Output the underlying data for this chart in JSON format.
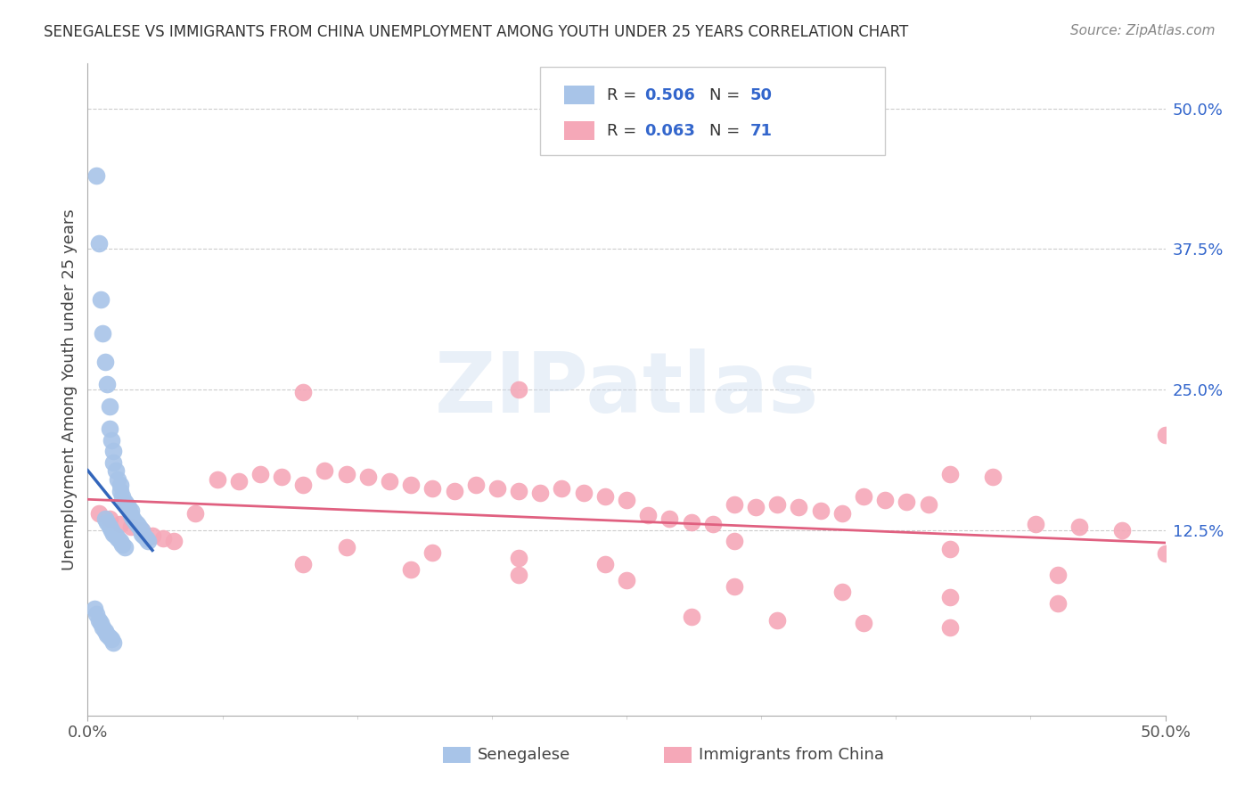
{
  "title": "SENEGALESE VS IMMIGRANTS FROM CHINA UNEMPLOYMENT AMONG YOUTH UNDER 25 YEARS CORRELATION CHART",
  "source": "Source: ZipAtlas.com",
  "ylabel": "Unemployment Among Youth under 25 years",
  "bg_color": "#ffffff",
  "watermark_text": "ZIPatlas",
  "senegalese_color": "#a8c4e8",
  "senegalese_line_color": "#3366bb",
  "china_color": "#f5a8b8",
  "china_line_color": "#e06080",
  "R_senegalese": 0.506,
  "N_senegalese": 50,
  "R_china": 0.063,
  "N_china": 71,
  "xlim": [
    0.0,
    0.5
  ],
  "ylim": [
    -0.04,
    0.54
  ],
  "senegalese_x": [
    0.004,
    0.005,
    0.006,
    0.007,
    0.008,
    0.009,
    0.01,
    0.01,
    0.011,
    0.012,
    0.012,
    0.013,
    0.014,
    0.015,
    0.015,
    0.016,
    0.017,
    0.018,
    0.019,
    0.02,
    0.02,
    0.021,
    0.022,
    0.023,
    0.024,
    0.025,
    0.025,
    0.026,
    0.027,
    0.028,
    0.008,
    0.009,
    0.01,
    0.011,
    0.012,
    0.013,
    0.014,
    0.015,
    0.016,
    0.017,
    0.003,
    0.004,
    0.005,
    0.006,
    0.007,
    0.008,
    0.009,
    0.01,
    0.011,
    0.012
  ],
  "senegalese_y": [
    0.44,
    0.38,
    0.33,
    0.3,
    0.275,
    0.255,
    0.235,
    0.215,
    0.205,
    0.195,
    0.185,
    0.178,
    0.17,
    0.165,
    0.16,
    0.155,
    0.15,
    0.148,
    0.145,
    0.142,
    0.138,
    0.135,
    0.132,
    0.13,
    0.128,
    0.125,
    0.122,
    0.12,
    0.118,
    0.115,
    0.135,
    0.132,
    0.128,
    0.125,
    0.122,
    0.12,
    0.118,
    0.115,
    0.112,
    0.11,
    0.055,
    0.05,
    0.045,
    0.042,
    0.038,
    0.035,
    0.032,
    0.03,
    0.028,
    0.025
  ],
  "china_x": [
    0.005,
    0.01,
    0.015,
    0.02,
    0.025,
    0.03,
    0.035,
    0.04,
    0.06,
    0.07,
    0.08,
    0.09,
    0.1,
    0.11,
    0.12,
    0.13,
    0.14,
    0.15,
    0.16,
    0.17,
    0.18,
    0.19,
    0.2,
    0.21,
    0.22,
    0.23,
    0.24,
    0.25,
    0.26,
    0.27,
    0.28,
    0.29,
    0.3,
    0.31,
    0.32,
    0.33,
    0.34,
    0.35,
    0.36,
    0.37,
    0.38,
    0.39,
    0.4,
    0.42,
    0.44,
    0.46,
    0.48,
    0.5,
    0.1,
    0.15,
    0.2,
    0.25,
    0.3,
    0.35,
    0.4,
    0.45,
    0.12,
    0.16,
    0.2,
    0.24,
    0.28,
    0.32,
    0.36,
    0.4,
    0.05,
    0.1,
    0.2,
    0.3,
    0.4,
    0.5,
    0.45
  ],
  "china_y": [
    0.14,
    0.135,
    0.13,
    0.128,
    0.125,
    0.12,
    0.118,
    0.115,
    0.17,
    0.168,
    0.175,
    0.172,
    0.165,
    0.178,
    0.175,
    0.172,
    0.168,
    0.165,
    0.162,
    0.16,
    0.165,
    0.162,
    0.16,
    0.158,
    0.162,
    0.158,
    0.155,
    0.152,
    0.138,
    0.135,
    0.132,
    0.13,
    0.148,
    0.145,
    0.148,
    0.145,
    0.142,
    0.14,
    0.155,
    0.152,
    0.15,
    0.148,
    0.175,
    0.172,
    0.13,
    0.128,
    0.125,
    0.21,
    0.095,
    0.09,
    0.085,
    0.08,
    0.075,
    0.07,
    0.065,
    0.06,
    0.11,
    0.105,
    0.1,
    0.095,
    0.048,
    0.045,
    0.042,
    0.038,
    0.14,
    0.248,
    0.25,
    0.115,
    0.108,
    0.104,
    0.085
  ]
}
